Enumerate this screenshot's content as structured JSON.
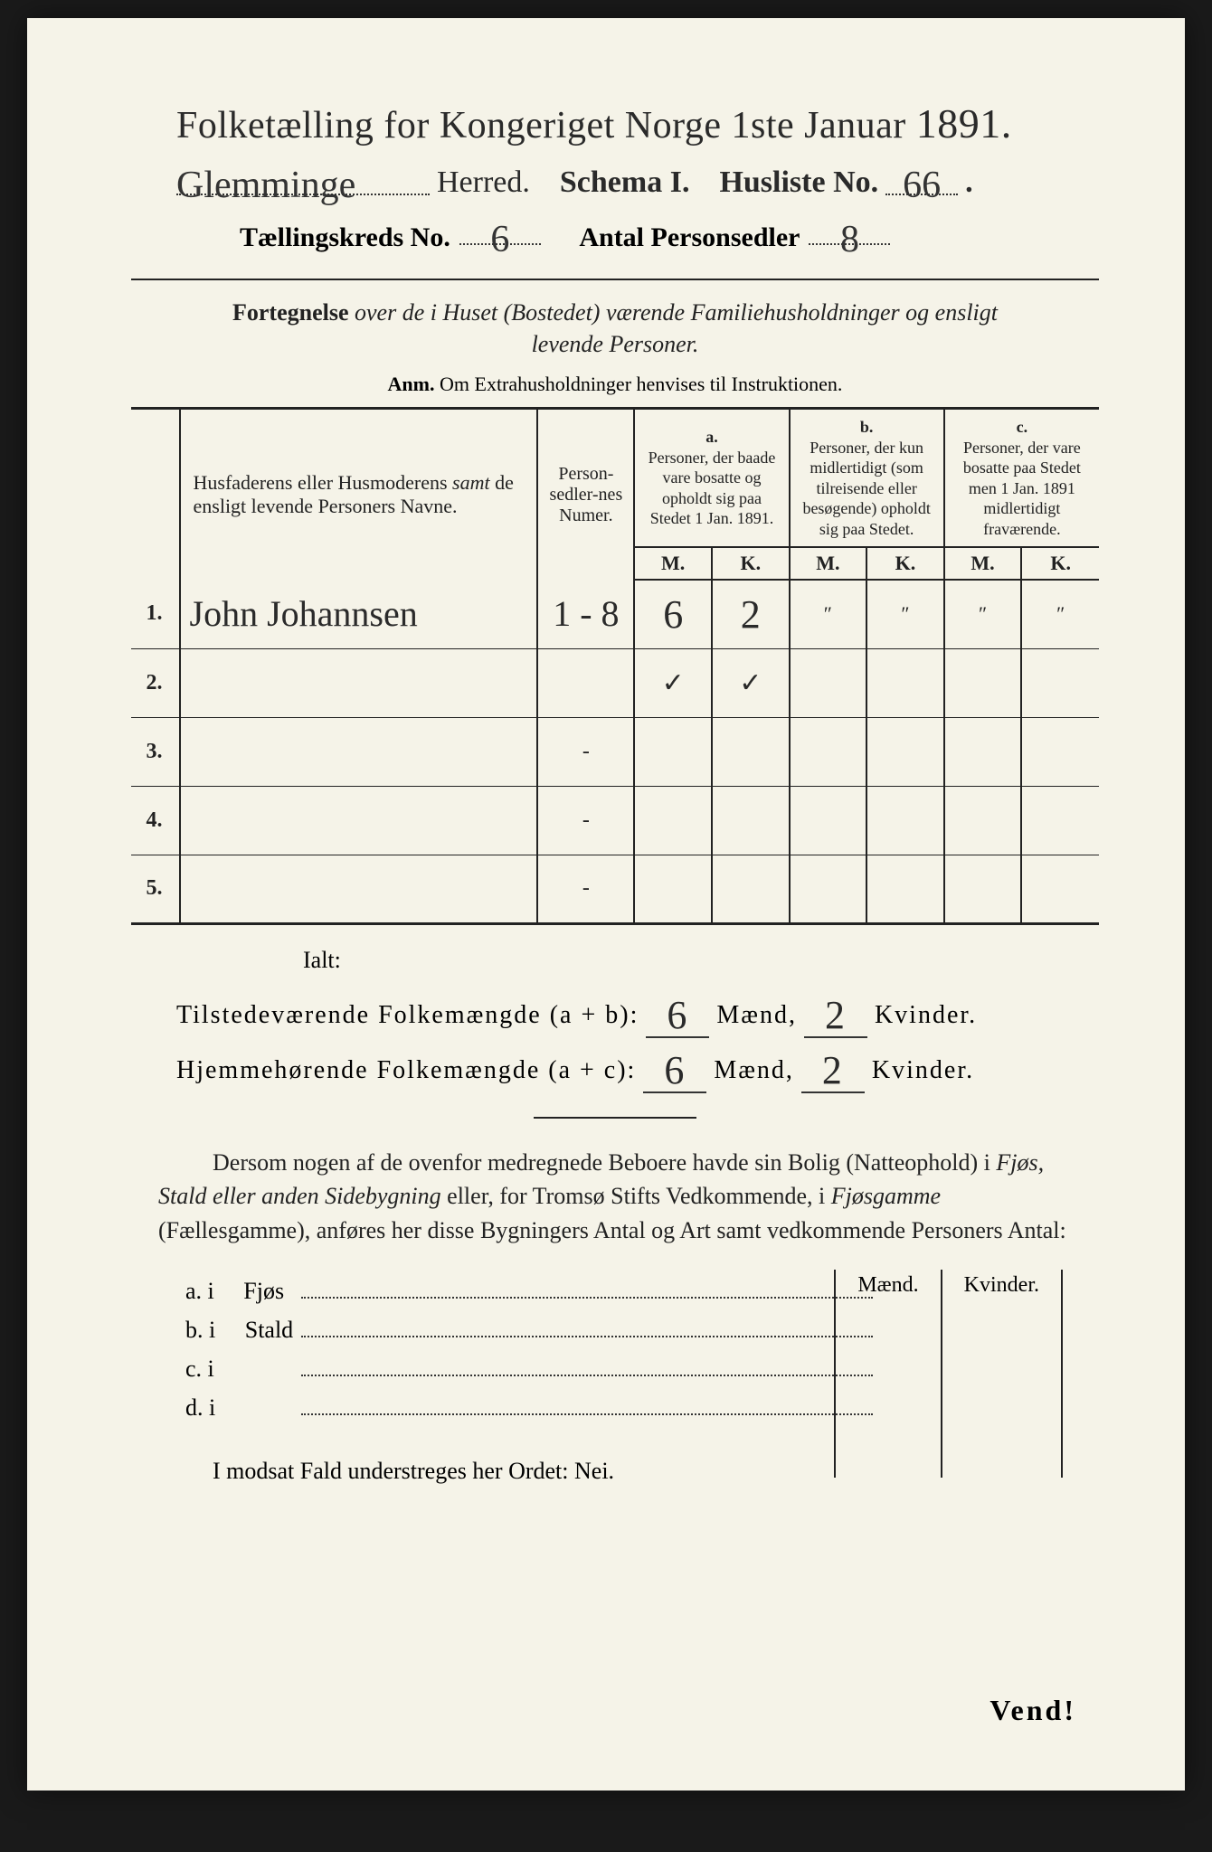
{
  "colors": {
    "paper": "#f5f3e8",
    "ink": "#2a2a2a",
    "background": "#1a1a1a"
  },
  "header": {
    "title_prefix": "Folketælling for Kongeriget Norge 1ste Januar",
    "title_year": "1891.",
    "herred_value": "Glemminge",
    "herred_label": "Herred.",
    "schema_label": "Schema I.",
    "husliste_label": "Husliste No.",
    "husliste_value": "66",
    "kreds_label": "Tællingskreds No.",
    "kreds_value": "6",
    "antal_label": "Antal Personsedler",
    "antal_value": "8"
  },
  "intro": {
    "para": "Fortegnelse over de i Huset (Bostedet) værende Familiehusholdninger og ensligt levende Personer.",
    "anm_label": "Anm.",
    "anm_text": "Om Extrahusholdninger henvises til Instruktionen."
  },
  "table": {
    "headers": {
      "names": "Husfaderens eller Husmoderens samt de ensligt levende Personers Navne.",
      "numer": "Person-sedler-nes Numer.",
      "a_label": "a.",
      "a_text": "Personer, der baade vare bosatte og opholdt sig paa Stedet 1 Jan. 1891.",
      "b_label": "b.",
      "b_text": "Personer, der kun midlertidigt (som tilreisende eller besøgende) opholdt sig paa Stedet.",
      "c_label": "c.",
      "c_text": "Personer, der vare bosatte paa Stedet men 1 Jan. 1891 midlertidigt fraværende.",
      "m": "M.",
      "k": "K."
    },
    "rows": [
      {
        "num": "1.",
        "name": "John Johannsen",
        "personsedler": "1 - 8",
        "a_m": "6",
        "a_k": "2",
        "b_m": "\"",
        "b_k": "\"",
        "c_m": "\"",
        "c_k": "\""
      },
      {
        "num": "2.",
        "name": "",
        "personsedler": "",
        "a_m": "✓",
        "a_k": "✓",
        "b_m": "",
        "b_k": "",
        "c_m": "",
        "c_k": ""
      },
      {
        "num": "3.",
        "name": "",
        "personsedler": "-",
        "a_m": "",
        "a_k": "",
        "b_m": "",
        "b_k": "",
        "c_m": "",
        "c_k": ""
      },
      {
        "num": "4.",
        "name": "",
        "personsedler": "-",
        "a_m": "",
        "a_k": "",
        "b_m": "",
        "b_k": "",
        "c_m": "",
        "c_k": ""
      },
      {
        "num": "5.",
        "name": "",
        "personsedler": "-",
        "a_m": "",
        "a_k": "",
        "b_m": "",
        "b_k": "",
        "c_m": "",
        "c_k": ""
      }
    ]
  },
  "totals": {
    "ialt": "Ialt:",
    "present_label": "Tilstedeværende Folkemængde (a + b):",
    "resident_label": "Hjemmehørende Folkemængde (a + c):",
    "present_m": "6",
    "present_k": "2",
    "resident_m": "6",
    "resident_k": "2",
    "maend": "Mænd,",
    "kvinder": "Kvinder."
  },
  "outbuildings": {
    "para": "Dersom nogen af de ovenfor medregnede Beboere havde sin Bolig (Natteophold) i Fjøs, Stald eller anden Sidebygning eller, for Tromsø Stifts Vedkommende, i Fjøsgamme (Fællesgamme), anføres her disse Bygningers Antal og Art samt vedkommende Personers Antal:",
    "maend": "Mænd.",
    "kvinder": "Kvinder.",
    "a": "a.  i",
    "a_label": "Fjøs",
    "b": "b.  i",
    "b_label": "Stald",
    "c": "c.  i",
    "d": "d.  i"
  },
  "footer": {
    "nei": "I modsat Fald understreges her Ordet: Nei.",
    "vend": "Vend!"
  }
}
